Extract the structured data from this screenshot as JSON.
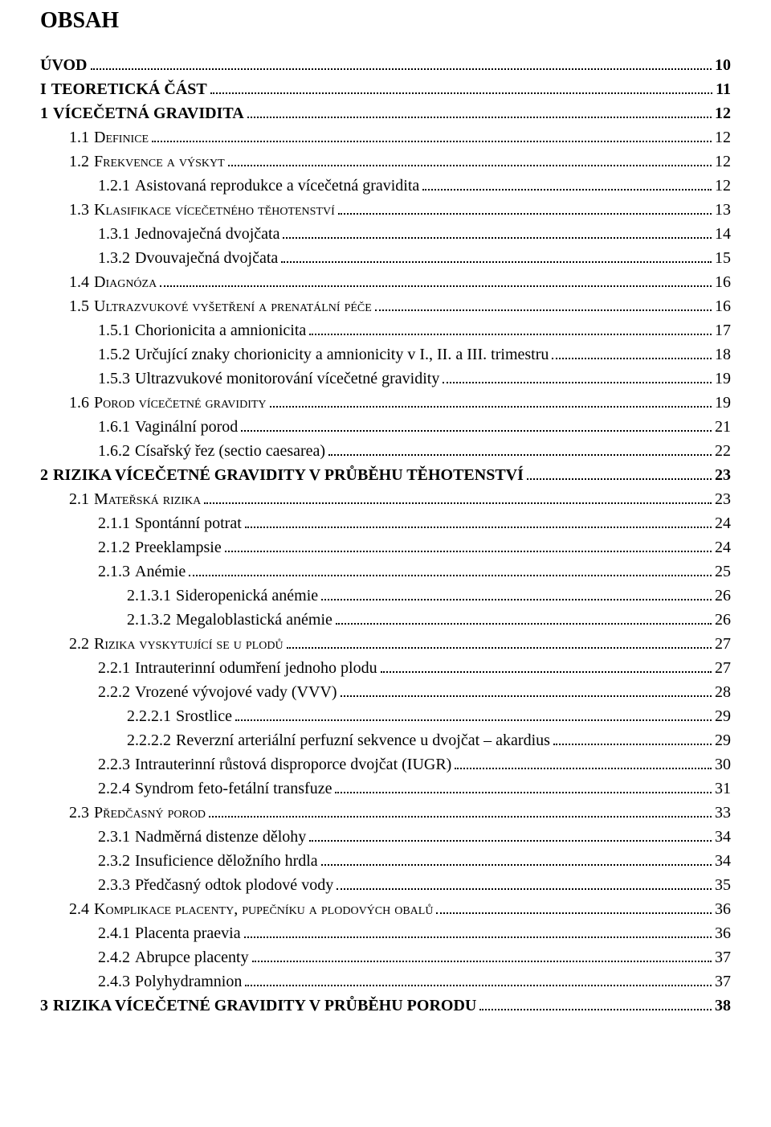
{
  "title": "OBSAH",
  "entries": [
    {
      "num": "",
      "label": "ÚVOD",
      "page": "10",
      "lvl": 0,
      "bold": true,
      "sc": false
    },
    {
      "num": "I",
      "label": "TEORETICKÁ ČÁST",
      "page": "11",
      "lvl": 0,
      "bold": true,
      "sc": false
    },
    {
      "num": "1",
      "label": "VÍCEČETNÁ GRAVIDITA",
      "page": "12",
      "lvl": 0,
      "bold": true,
      "sc": false
    },
    {
      "num": "1.1",
      "label": "Definice",
      "page": "12",
      "lvl": 1,
      "bold": false,
      "sc": true
    },
    {
      "num": "1.2",
      "label": "Frekvence a výskyt",
      "page": "12",
      "lvl": 1,
      "bold": false,
      "sc": true
    },
    {
      "num": "1.2.1",
      "label": "Asistovaná reprodukce a vícečetná gravidita",
      "page": "12",
      "lvl": 2,
      "bold": false,
      "sc": false
    },
    {
      "num": "1.3",
      "label": "Klasifikace vícečetného těhotenství",
      "page": "13",
      "lvl": 1,
      "bold": false,
      "sc": true
    },
    {
      "num": "1.3.1",
      "label": "Jednovaječná dvojčata",
      "page": "14",
      "lvl": 2,
      "bold": false,
      "sc": false
    },
    {
      "num": "1.3.2",
      "label": "Dvouvaječná dvojčata",
      "page": "15",
      "lvl": 2,
      "bold": false,
      "sc": false
    },
    {
      "num": "1.4",
      "label": "Diagnóza",
      "page": "16",
      "lvl": 1,
      "bold": false,
      "sc": true
    },
    {
      "num": "1.5",
      "label": "Ultrazvukové vyšetření a prenatální péče",
      "page": "16",
      "lvl": 1,
      "bold": false,
      "sc": true
    },
    {
      "num": "1.5.1",
      "label": "Chorionicita a amnionicita",
      "page": "17",
      "lvl": 2,
      "bold": false,
      "sc": false
    },
    {
      "num": "1.5.2",
      "label": "Určující znaky chorionicity a amnionicity v I., II. a III. trimestru",
      "page": "18",
      "lvl": 2,
      "bold": false,
      "sc": false
    },
    {
      "num": "1.5.3",
      "label": "Ultrazvukové monitorování vícečetné gravidity",
      "page": "19",
      "lvl": 2,
      "bold": false,
      "sc": false
    },
    {
      "num": "1.6",
      "label": "Porod vícečetné gravidity",
      "page": "19",
      "lvl": 1,
      "bold": false,
      "sc": true
    },
    {
      "num": "1.6.1",
      "label": "Vaginální porod",
      "page": "21",
      "lvl": 2,
      "bold": false,
      "sc": false
    },
    {
      "num": "1.6.2",
      "label": "Císařský řez (sectio caesarea)",
      "page": "22",
      "lvl": 2,
      "bold": false,
      "sc": false
    },
    {
      "num": "2",
      "label": "RIZIKA VÍCEČETNÉ GRAVIDITY V PRŮBĚHU TĚHOTENSTVÍ",
      "page": "23",
      "lvl": 0,
      "bold": true,
      "sc": false
    },
    {
      "num": "2.1",
      "label": "Mateřská rizika",
      "page": "23",
      "lvl": 1,
      "bold": false,
      "sc": true
    },
    {
      "num": "2.1.1",
      "label": "Spontánní potrat",
      "page": "24",
      "lvl": 2,
      "bold": false,
      "sc": false
    },
    {
      "num": "2.1.2",
      "label": "Preeklampsie",
      "page": "24",
      "lvl": 2,
      "bold": false,
      "sc": false
    },
    {
      "num": "2.1.3",
      "label": "Anémie",
      "page": "25",
      "lvl": 2,
      "bold": false,
      "sc": false
    },
    {
      "num": "2.1.3.1",
      "label": "Sideropenická anémie",
      "page": "26",
      "lvl": 3,
      "bold": false,
      "sc": false
    },
    {
      "num": "2.1.3.2",
      "label": "Megaloblastická anémie",
      "page": "26",
      "lvl": 3,
      "bold": false,
      "sc": false
    },
    {
      "num": "2.2",
      "label": "Rizika vyskytující se u plodů",
      "page": "27",
      "lvl": 1,
      "bold": false,
      "sc": true
    },
    {
      "num": "2.2.1",
      "label": "Intrauterinní odumření jednoho plodu",
      "page": "27",
      "lvl": 2,
      "bold": false,
      "sc": false
    },
    {
      "num": "2.2.2",
      "label": "Vrozené vývojové vady (VVV)",
      "page": "28",
      "lvl": 2,
      "bold": false,
      "sc": false
    },
    {
      "num": "2.2.2.1",
      "label": "Srostlice",
      "page": "29",
      "lvl": 3,
      "bold": false,
      "sc": false
    },
    {
      "num": "2.2.2.2",
      "label": "Reverzní arteriální perfuzní sekvence u dvojčat – akardius",
      "page": "29",
      "lvl": 3,
      "bold": false,
      "sc": false
    },
    {
      "num": "2.2.3",
      "label": "Intrauterinní růstová disproporce dvojčat (IUGR)",
      "page": "30",
      "lvl": 2,
      "bold": false,
      "sc": false
    },
    {
      "num": "2.2.4",
      "label": "Syndrom feto-fetální transfuze",
      "page": "31",
      "lvl": 2,
      "bold": false,
      "sc": false
    },
    {
      "num": "2.3",
      "label": "Předčasný porod",
      "page": "33",
      "lvl": 1,
      "bold": false,
      "sc": true
    },
    {
      "num": "2.3.1",
      "label": "Nadměrná distenze dělohy",
      "page": "34",
      "lvl": 2,
      "bold": false,
      "sc": false
    },
    {
      "num": "2.3.2",
      "label": "Insuficience děložního hrdla",
      "page": "34",
      "lvl": 2,
      "bold": false,
      "sc": false
    },
    {
      "num": "2.3.3",
      "label": "Předčasný odtok plodové vody",
      "page": "35",
      "lvl": 2,
      "bold": false,
      "sc": false
    },
    {
      "num": "2.4",
      "label": "Komplikace placenty, pupečníku a plodových obalů",
      "page": "36",
      "lvl": 1,
      "bold": false,
      "sc": true
    },
    {
      "num": "2.4.1",
      "label": "Placenta praevia",
      "page": "36",
      "lvl": 2,
      "bold": false,
      "sc": false
    },
    {
      "num": "2.4.2",
      "label": "Abrupce placenty",
      "page": "37",
      "lvl": 2,
      "bold": false,
      "sc": false
    },
    {
      "num": "2.4.3",
      "label": "Polyhydramnion",
      "page": "37",
      "lvl": 2,
      "bold": false,
      "sc": false
    },
    {
      "num": "3",
      "label": "RIZIKA VÍCEČETNÉ GRAVIDITY V PRŮBĚHU PORODU",
      "page": "38",
      "lvl": 0,
      "bold": true,
      "sc": false
    }
  ]
}
